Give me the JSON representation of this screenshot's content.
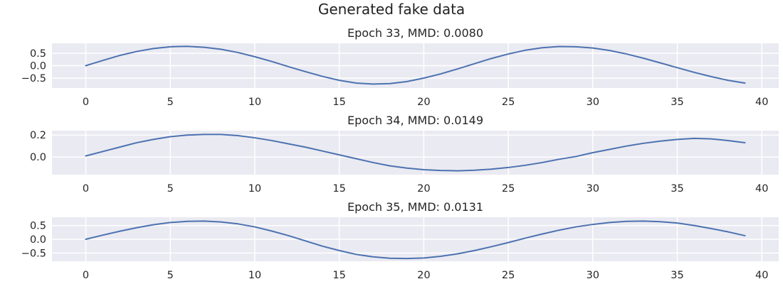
{
  "figure": {
    "suptitle": "Generated fake data",
    "background": "#ffffff",
    "axes_facecolor": "#eaeaf2",
    "grid_color": "#ffffff",
    "line_color": "#4c72b0"
  },
  "chart_data": [
    {
      "type": "line",
      "title": "Epoch 33, MMD: 0.0080",
      "xlabel": "",
      "ylabel": "",
      "grid": true,
      "xlim": [
        -2,
        41
      ],
      "ylim": [
        -0.9,
        0.9
      ],
      "xticks": [
        0,
        5,
        10,
        15,
        20,
        25,
        30,
        35,
        40
      ],
      "yticks": [
        0.5,
        0.0,
        -0.5
      ],
      "ytick_labels": [
        "0.5",
        "0.0",
        "−0.5"
      ],
      "x": [
        0,
        1,
        2,
        3,
        4,
        5,
        6,
        7,
        8,
        9,
        10,
        11,
        12,
        13,
        14,
        15,
        16,
        17,
        18,
        19,
        20,
        21,
        22,
        23,
        24,
        25,
        26,
        27,
        28,
        29,
        30,
        31,
        32,
        33,
        34,
        35,
        36,
        37,
        38,
        39
      ],
      "series": [
        {
          "values": [
            0.0,
            0.21,
            0.41,
            0.57,
            0.69,
            0.76,
            0.78,
            0.74,
            0.66,
            0.53,
            0.36,
            0.17,
            -0.04,
            -0.24,
            -0.43,
            -0.59,
            -0.7,
            -0.74,
            -0.72,
            -0.64,
            -0.5,
            -0.33,
            -0.13,
            0.08,
            0.29,
            0.47,
            0.62,
            0.72,
            0.77,
            0.76,
            0.71,
            0.61,
            0.47,
            0.3,
            0.11,
            -0.08,
            -0.27,
            -0.44,
            -0.59,
            -0.7
          ]
        }
      ]
    },
    {
      "type": "line",
      "title": "Epoch 34, MMD: 0.0149",
      "xlabel": "",
      "ylabel": "",
      "grid": true,
      "xlim": [
        -2,
        41
      ],
      "ylim": [
        -0.16,
        0.24
      ],
      "xticks": [
        0,
        5,
        10,
        15,
        20,
        25,
        30,
        35,
        40
      ],
      "yticks": [
        0.2,
        0.0
      ],
      "ytick_labels": [
        "0.2",
        "0.0"
      ],
      "x": [
        0,
        1,
        2,
        3,
        4,
        5,
        6,
        7,
        8,
        9,
        10,
        11,
        12,
        13,
        14,
        15,
        16,
        17,
        18,
        19,
        20,
        21,
        22,
        23,
        24,
        25,
        26,
        27,
        28,
        29,
        30,
        31,
        32,
        33,
        34,
        35,
        36,
        37,
        38,
        39
      ],
      "series": [
        {
          "values": [
            0.01,
            0.05,
            0.09,
            0.13,
            0.16,
            0.185,
            0.2,
            0.205,
            0.205,
            0.195,
            0.175,
            0.15,
            0.12,
            0.09,
            0.055,
            0.02,
            -0.015,
            -0.05,
            -0.08,
            -0.1,
            -0.115,
            -0.122,
            -0.125,
            -0.12,
            -0.11,
            -0.095,
            -0.075,
            -0.05,
            -0.02,
            0.005,
            0.04,
            0.07,
            0.1,
            0.125,
            0.145,
            0.16,
            0.17,
            0.165,
            0.15,
            0.13
          ]
        }
      ]
    },
    {
      "type": "line",
      "title": "Epoch 35, MMD: 0.0131",
      "xlabel": "",
      "ylabel": "",
      "grid": true,
      "xlim": [
        -2,
        41
      ],
      "ylim": [
        -0.8,
        0.8
      ],
      "xticks": [
        0,
        5,
        10,
        15,
        20,
        25,
        30,
        35,
        40
      ],
      "yticks": [
        0.5,
        0.0,
        -0.5
      ],
      "ytick_labels": [
        "0.5",
        "0.0",
        "−0.5"
      ],
      "x": [
        0,
        1,
        2,
        3,
        4,
        5,
        6,
        7,
        8,
        9,
        10,
        11,
        12,
        13,
        14,
        15,
        16,
        17,
        18,
        19,
        20,
        21,
        22,
        23,
        24,
        25,
        26,
        27,
        28,
        29,
        30,
        31,
        32,
        33,
        34,
        35,
        36,
        37,
        38,
        39
      ],
      "series": [
        {
          "values": [
            0.0,
            0.15,
            0.29,
            0.42,
            0.53,
            0.61,
            0.65,
            0.66,
            0.63,
            0.56,
            0.45,
            0.3,
            0.13,
            -0.06,
            -0.25,
            -0.41,
            -0.55,
            -0.64,
            -0.69,
            -0.7,
            -0.68,
            -0.62,
            -0.53,
            -0.41,
            -0.27,
            -0.12,
            0.04,
            0.19,
            0.33,
            0.45,
            0.54,
            0.61,
            0.65,
            0.66,
            0.64,
            0.59,
            0.5,
            0.39,
            0.27,
            0.13
          ]
        }
      ]
    }
  ]
}
